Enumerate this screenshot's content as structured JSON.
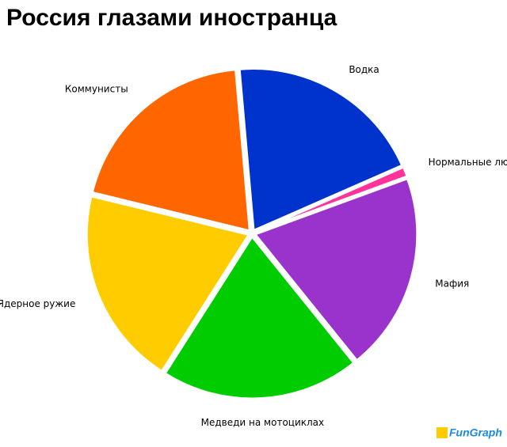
{
  "chart_data": {
    "type": "pie",
    "title": "Россия глазами иностранца",
    "categories": [
      "Водка",
      "Нормальные люди",
      "Мафия",
      "Медведи на мотоциклах",
      "Ядерное ружие",
      "Коммунисты"
    ],
    "values": [
      19.8,
      1,
      19.8,
      19.8,
      19.8,
      19.8
    ],
    "colors": [
      "#0033cc",
      "#ff3399",
      "#9933cc",
      "#00cc00",
      "#ffcc00",
      "#ff6600"
    ],
    "watermark": "FunGraph"
  }
}
